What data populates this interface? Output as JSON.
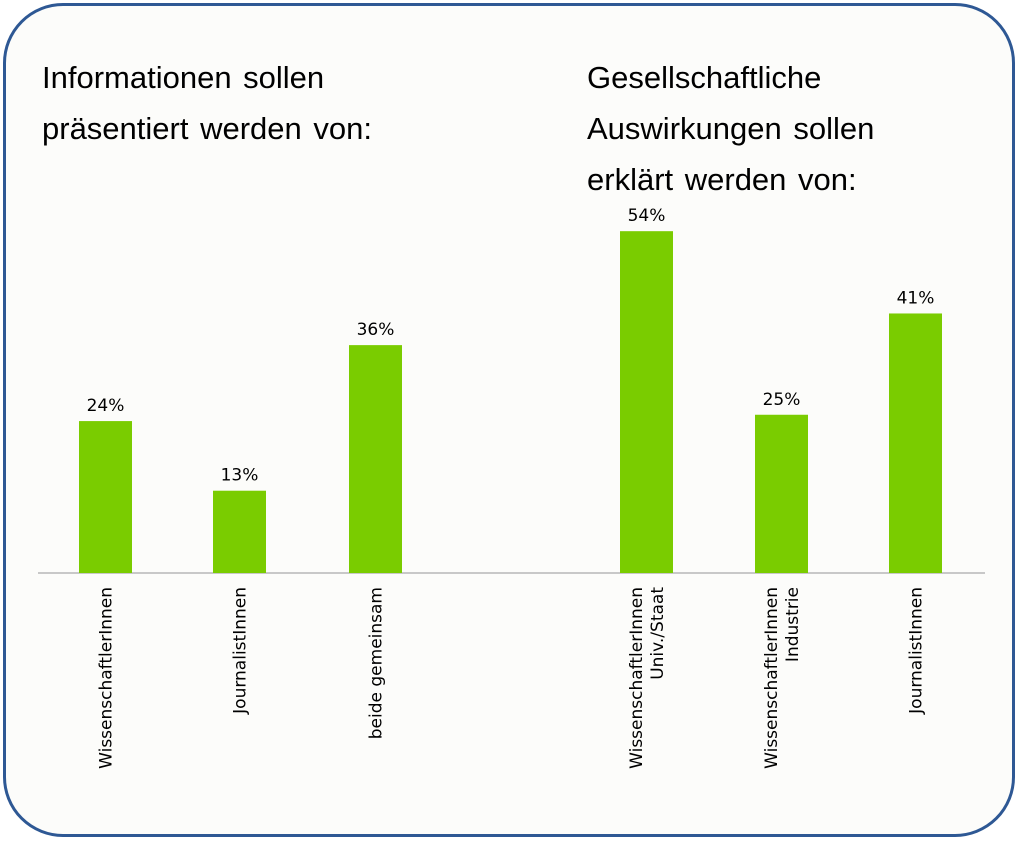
{
  "chart_data": [
    {
      "type": "bar",
      "title_lines": [
        "Informationen sollen",
        "präsentiert werden von:"
      ],
      "categories": [
        [
          "WissenschaftlerInnen"
        ],
        [
          "JournalistInnen"
        ],
        [
          "beide gemeinsam"
        ]
      ],
      "values": [
        24,
        13,
        36
      ],
      "value_labels": [
        "24%",
        "13%",
        "36%"
      ],
      "ylim": [
        0,
        54
      ],
      "color": "#7acc00"
    },
    {
      "type": "bar",
      "title_lines": [
        "Gesellschaftliche",
        "Auswirkungen sollen",
        "erklärt werden von:"
      ],
      "categories": [
        [
          "WissenschaftlerInnen",
          "Univ./Staat"
        ],
        [
          "WissenschaftlerInnen",
          "Industrie"
        ],
        [
          "JournalistInnen"
        ]
      ],
      "values": [
        54,
        25,
        41
      ],
      "value_labels": [
        "54%",
        "25%",
        "41%"
      ],
      "ylim": [
        0,
        54
      ],
      "color": "#7acc00"
    }
  ]
}
